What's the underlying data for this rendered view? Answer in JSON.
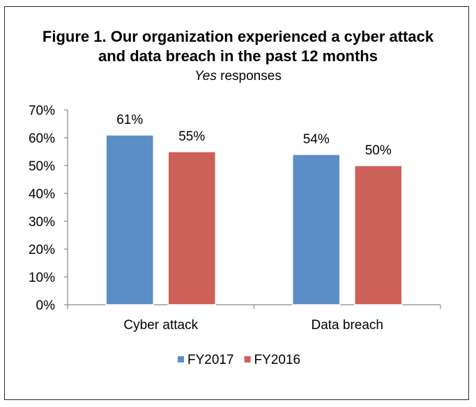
{
  "chart_data": {
    "type": "bar",
    "title_line1": "Figure 1. Our organization experienced a cyber attack",
    "title_line2": "and data breach in the past 12 months",
    "subtitle_italic": "Yes",
    "subtitle_rest": " responses",
    "categories": [
      "Cyber attack",
      "Data breach"
    ],
    "series": [
      {
        "name": "FY2017",
        "color": "#5b8ec7",
        "values": [
          61,
          54
        ],
        "labels": [
          "61%",
          "54%"
        ]
      },
      {
        "name": "FY2016",
        "color": "#cd6059",
        "values": [
          55,
          50
        ],
        "labels": [
          "55%",
          "50%"
        ]
      }
    ],
    "ylim": [
      0,
      70
    ],
    "yticks": [
      "0%",
      "10%",
      "20%",
      "30%",
      "40%",
      "50%",
      "60%",
      "70%"
    ],
    "grid": false,
    "legend_position": "bottom"
  }
}
